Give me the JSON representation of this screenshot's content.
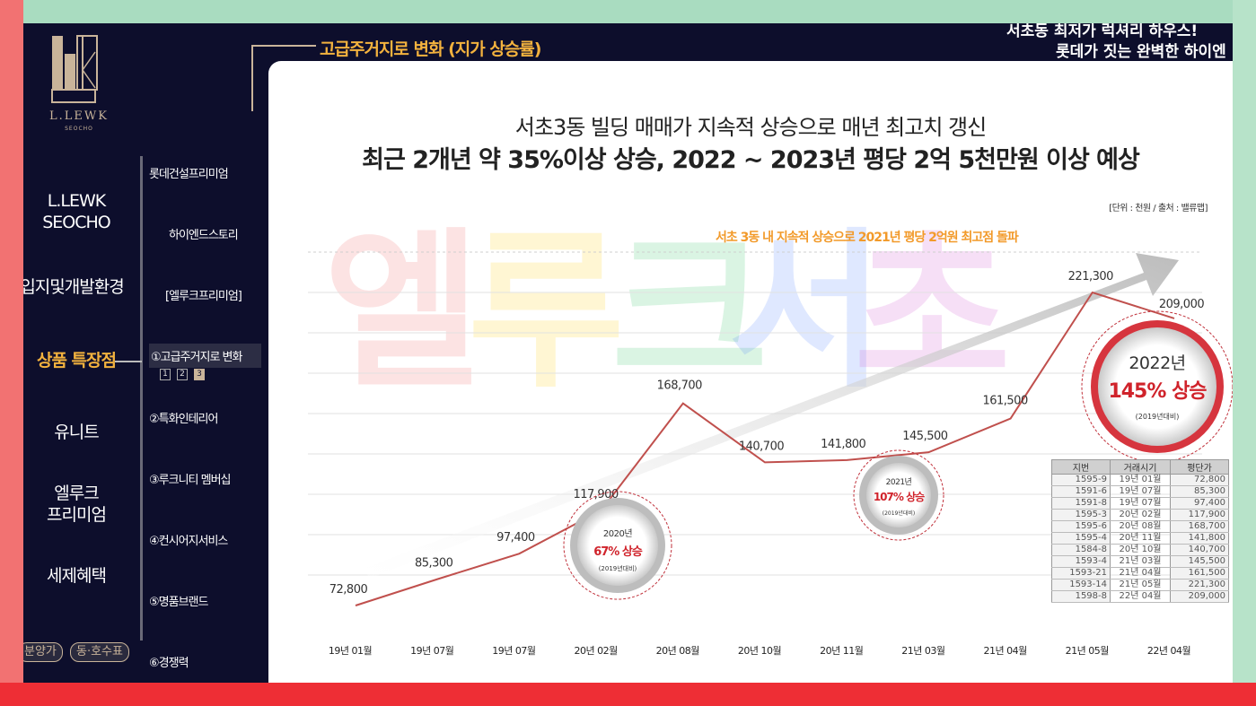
{
  "brand": {
    "logo_text": "L.LEWK",
    "logo_sub": "SEOCHO"
  },
  "nav_main": [
    {
      "label": "L.LEWK\nSEOCHO"
    },
    {
      "label": "입지및개발환경"
    },
    {
      "label": "상품 특장점",
      "active": true
    },
    {
      "label": "유니트"
    },
    {
      "label": "엘루크\n프리미엄"
    },
    {
      "label": "세제혜택"
    }
  ],
  "nav_sub": [
    {
      "label": "롯데건설프리미엄"
    },
    {
      "label": "하이엔드스토리"
    },
    {
      "label": "[엘루크프리미엄]"
    },
    {
      "label": "①고급주거지로 변화",
      "active": true
    },
    {
      "label": "②특화인테리어"
    },
    {
      "label": "③루크니티 멤버십"
    },
    {
      "label": "④컨시어지서비스"
    },
    {
      "label": "⑤명품브랜드"
    },
    {
      "label": "⑥경쟁력"
    }
  ],
  "sub_pages": [
    "1",
    "2",
    "3"
  ],
  "bottom_pills": [
    "분양가",
    "동·호수표"
  ],
  "header": {
    "section_title": "고급주거지로 변화 (지가 상승률)",
    "tagline1": "서초동 최저가 럭셔리 하우스!",
    "tagline2": "롯데가 짓는 완벽한 하이엔"
  },
  "headline1": "서초3동 빌딩 매매가 지속적 상승으로 매년 최고치 갱신",
  "headline2": "최근 2개년 약 35%이상 상승, 2022 ~ 2023년 평당 2억 5천만원 이상 예상",
  "unit_note": "[단위 : 천원 / 출처 : 밸류맵]",
  "trend_note": "서초 3동 내 지속적 상승으로 2021년 평당 2억원 최고점 돌파",
  "watermark": [
    "엘",
    "루",
    "크",
    "서",
    "초"
  ],
  "watermark_colors": [
    "#f06060",
    "#ffd000",
    "#28c060",
    "#4a7cff",
    "#d04ad0"
  ],
  "chart_data": {
    "type": "line",
    "categories": [
      "19년 01월",
      "19년 07월",
      "19년 07월",
      "20년 02월",
      "20년 08월",
      "20년 10월",
      "20년 11월",
      "21년 03월",
      "21년 04월",
      "21년 05월",
      "22년 04월"
    ],
    "values": [
      72800,
      85300,
      97400,
      117900,
      168700,
      140700,
      141800,
      145500,
      161500,
      221300,
      209000
    ],
    "value_labels": [
      "72,800",
      "85,300",
      "97,400",
      "117,900",
      "168,700",
      "140,700",
      "141,800",
      "145,500",
      "161,500",
      "221,300",
      "209,000"
    ],
    "line_color": "#c0504d",
    "grid": true
  },
  "callouts": [
    {
      "year": "2020년",
      "pct": "67% 상승",
      "note": "(2019년대비)"
    },
    {
      "year": "2021년",
      "pct": "107% 상승",
      "note": "(2019년대비)"
    },
    {
      "year": "2022년",
      "pct": "145% 상승",
      "note": "(2019년대비)"
    }
  ],
  "price_table": {
    "headers": [
      "지번",
      "거래시기",
      "평단가"
    ],
    "rows": [
      [
        "1595-9",
        "19년 01월",
        "72,800"
      ],
      [
        "1591-6",
        "19년 07월",
        "85,300"
      ],
      [
        "1591-8",
        "19년 07월",
        "97,400"
      ],
      [
        "1595-3",
        "20년 02월",
        "117,900"
      ],
      [
        "1595-6",
        "20년 08월",
        "168,700"
      ],
      [
        "1595-4",
        "20년 11월",
        "141,800"
      ],
      [
        "1584-8",
        "20년 10월",
        "140,700"
      ],
      [
        "1593-4",
        "21년 03월",
        "145,500"
      ],
      [
        "1593-21",
        "21년 04월",
        "161,500"
      ],
      [
        "1593-14",
        "21년 05월",
        "221,300"
      ],
      [
        "1598-8",
        "22년 04월",
        "209,000"
      ]
    ]
  }
}
